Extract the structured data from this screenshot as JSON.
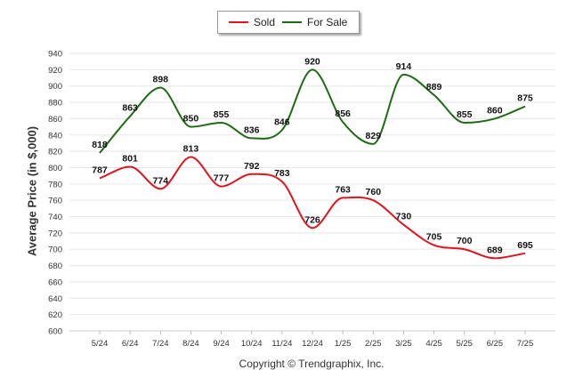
{
  "chart_data": {
    "type": "line",
    "categories": [
      "5/24",
      "6/24",
      "7/24",
      "8/24",
      "9/24",
      "10/24",
      "11/24",
      "12/24",
      "1/25",
      "2/25",
      "3/25",
      "4/25",
      "5/25",
      "6/25",
      "7/25"
    ],
    "series": [
      {
        "name": "Sold",
        "color": "#e0141e",
        "values": [
          787,
          801,
          774,
          813,
          777,
          792,
          783,
          726,
          763,
          760,
          730,
          705,
          700,
          689,
          695
        ]
      },
      {
        "name": "For Sale",
        "color": "#1e6b14",
        "values": [
          818,
          863,
          898,
          850,
          855,
          836,
          846,
          920,
          856,
          829,
          914,
          889,
          855,
          860,
          875
        ]
      }
    ],
    "ylabel": "Average Price (in $,000)",
    "ylim": [
      600,
      940
    ],
    "ytick_step": 20,
    "grid": true,
    "legend": "top-center",
    "copyright": "Copyright © Trendgraphix, Inc."
  }
}
